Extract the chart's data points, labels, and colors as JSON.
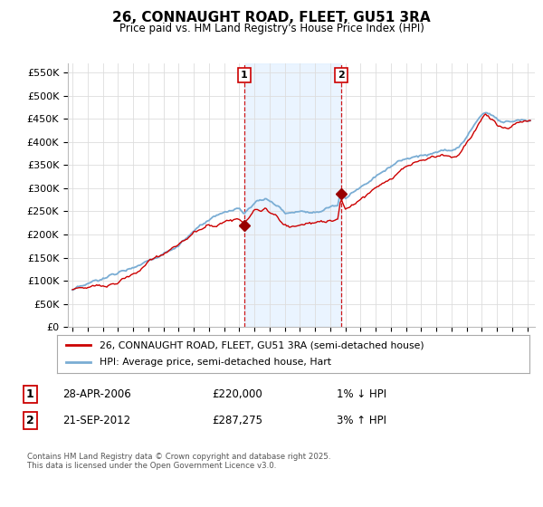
{
  "title": "26, CONNAUGHT ROAD, FLEET, GU51 3RA",
  "subtitle": "Price paid vs. HM Land Registry's House Price Index (HPI)",
  "ylabel_ticks": [
    "£0",
    "£50K",
    "£100K",
    "£150K",
    "£200K",
    "£250K",
    "£300K",
    "£350K",
    "£400K",
    "£450K",
    "£500K",
    "£550K"
  ],
  "ytick_values": [
    0,
    50000,
    100000,
    150000,
    200000,
    250000,
    300000,
    350000,
    400000,
    450000,
    500000,
    550000
  ],
  "ylim": [
    0,
    570000
  ],
  "xlim_start": 1994.7,
  "xlim_end": 2025.5,
  "xticks": [
    1995,
    1996,
    1997,
    1998,
    1999,
    2000,
    2001,
    2002,
    2003,
    2004,
    2005,
    2006,
    2007,
    2008,
    2009,
    2010,
    2011,
    2012,
    2013,
    2014,
    2015,
    2016,
    2017,
    2018,
    2019,
    2020,
    2021,
    2022,
    2023,
    2024,
    2025
  ],
  "purchase_1_x": 2006.32,
  "purchase_1_y": 220000,
  "purchase_2_x": 2012.72,
  "purchase_2_y": 287275,
  "line_color_property": "#cc0000",
  "line_color_hpi": "#7aadd4",
  "dot_color": "#990000",
  "shaded_region_color": "#ddeeff",
  "shaded_region_alpha": 0.6,
  "background_color": "#ffffff",
  "grid_color": "#dddddd",
  "legend_label_property": "26, CONNAUGHT ROAD, FLEET, GU51 3RA (semi-detached house)",
  "legend_label_hpi": "HPI: Average price, semi-detached house, Hart",
  "purchase_1_date": "28-APR-2006",
  "purchase_1_price": "£220,000",
  "purchase_1_hpi": "1% ↓ HPI",
  "purchase_2_date": "21-SEP-2012",
  "purchase_2_price": "£287,275",
  "purchase_2_hpi": "3% ↑ HPI",
  "annotation_box_color": "#cc0000",
  "footer": "Contains HM Land Registry data © Crown copyright and database right 2025.\nThis data is licensed under the Open Government Licence v3.0."
}
